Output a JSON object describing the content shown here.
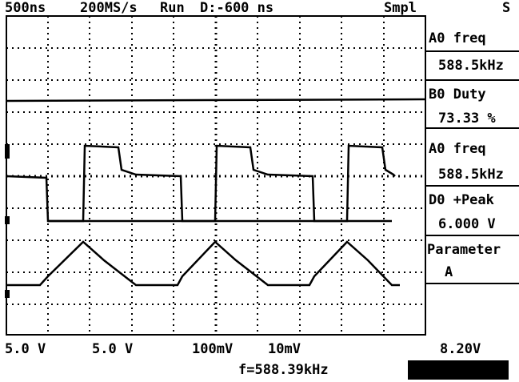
{
  "top_bar": {
    "timebase": "500ns",
    "sample_rate": "200MS/s",
    "status": "Run",
    "delay": "D:-600 ns",
    "mode": "Smpl",
    "trigger": "S"
  },
  "measurements": [
    {
      "label": "A0 freq",
      "value": "588.5kHz"
    },
    {
      "label": "B0 Duty",
      "value": "73.33 %"
    },
    {
      "label": "A0 freq",
      "value": "588.5kHz"
    },
    {
      "label": "D0 +Peak",
      "value": "6.000 V"
    }
  ],
  "parameter": {
    "label": "Parameter",
    "value": "A"
  },
  "bottom_bar": {
    "ch1": "5.0 V",
    "ch2": "5.0 V",
    "ch3": "100mV",
    "ch4": "10mV",
    "trigger_level": "8.20V",
    "frequency": "f=588.39kHz"
  }
}
